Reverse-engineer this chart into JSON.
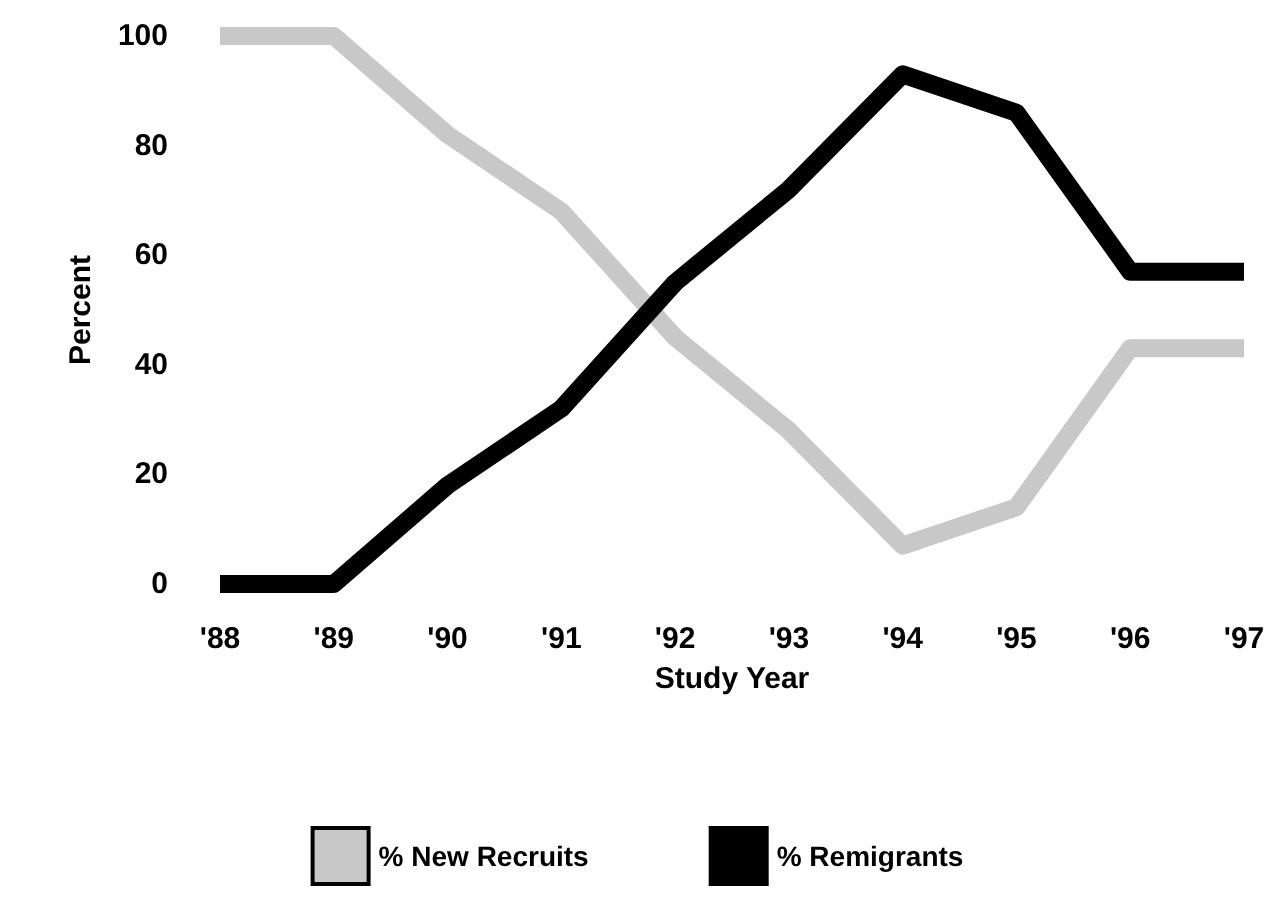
{
  "chart_data": {
    "type": "line",
    "xlabel": "Study Year",
    "ylabel": "Percent",
    "categories": [
      "'88",
      "'89",
      "'90",
      "'91",
      "'92",
      "'93",
      "'94",
      "'95",
      "'96",
      "'97"
    ],
    "series": [
      {
        "name": "% New Recruits",
        "color": "#c8c8c8",
        "values": [
          100,
          100,
          82,
          68,
          45,
          28,
          7,
          14,
          43,
          43
        ]
      },
      {
        "name": "% Remigrants",
        "color": "#000000",
        "values": [
          0,
          0,
          18,
          32,
          55,
          72,
          93,
          86,
          57,
          57
        ]
      }
    ],
    "ylim": [
      0,
      100
    ],
    "yticks": [
      0,
      20,
      40,
      60,
      80,
      100
    ],
    "grid": false,
    "legend": "bottom",
    "marker": "none",
    "line_style": "solid"
  }
}
